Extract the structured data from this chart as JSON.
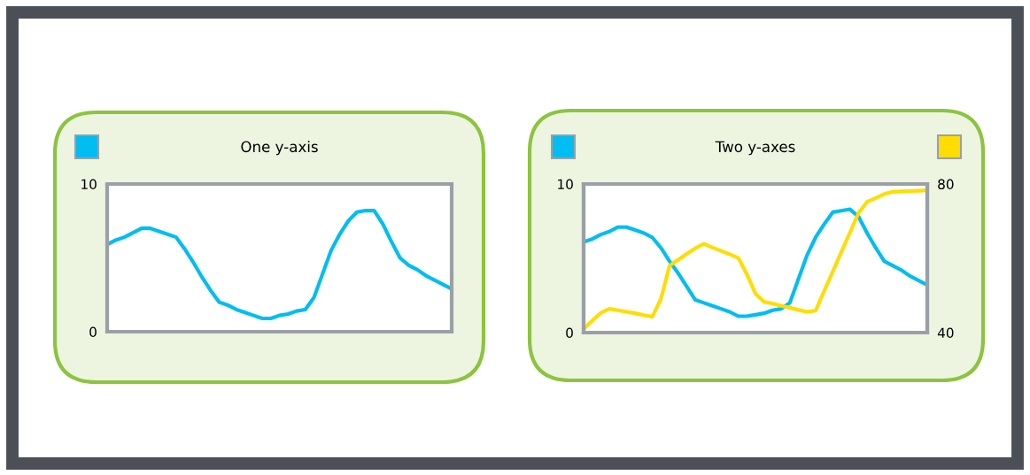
{
  "chart_data": [
    {
      "type": "line",
      "title": "One y-axis",
      "ylim": [
        0,
        10
      ],
      "yticks": [
        0,
        10
      ],
      "tick_labels": "y",
      "categories": [
        null,
        null,
        null,
        null,
        null,
        null,
        null,
        null,
        null,
        null,
        null,
        null,
        null,
        null,
        null,
        null,
        null,
        null,
        null,
        null,
        null,
        null,
        null,
        null,
        null,
        null,
        null,
        null,
        null,
        null,
        null,
        null,
        null,
        null,
        null,
        null,
        null,
        null,
        null,
        null,
        null
      ],
      "series": [
        {
          "color": "#00bdf2",
          "values": [
            5.9,
            6.2,
            6.4,
            6.7,
            7.0,
            7.0,
            6.8,
            6.6,
            6.4,
            5.6,
            4.7,
            3.7,
            2.8,
            2.0,
            1.8,
            1.5,
            1.3,
            1.1,
            0.9,
            0.9,
            1.1,
            1.2,
            1.4,
            1.5,
            2.3,
            3.9,
            5.5,
            6.6,
            7.5,
            8.1,
            8.2,
            8.2,
            7.3,
            6.1,
            5.0,
            4.5,
            4.2,
            3.8,
            3.5,
            3.2,
            2.9
          ]
        }
      ]
    },
    {
      "type": "line",
      "title": "Two y-axes",
      "ylim": [
        0,
        10
      ],
      "yticks": [
        0,
        10
      ],
      "y2lim": [
        40,
        80
      ],
      "y2ticks": [
        40,
        80
      ],
      "tick_labels": "y",
      "categories": [
        null,
        null,
        null,
        null,
        null,
        null,
        null,
        null,
        null,
        null,
        null,
        null,
        null,
        null,
        null,
        null,
        null,
        null,
        null,
        null,
        null,
        null,
        null,
        null,
        null,
        null,
        null,
        null,
        null,
        null,
        null,
        null,
        null,
        null,
        null,
        null,
        null,
        null,
        null,
        null,
        null
      ],
      "series": [
        {
          "color": "#00bdf2",
          "values": [
            6.1,
            6.3,
            6.6,
            6.8,
            7.1,
            7.1,
            6.9,
            6.7,
            6.4,
            5.7,
            4.8,
            4.0,
            3.1,
            2.2,
            2.0,
            1.8,
            1.6,
            1.4,
            1.1,
            1.1,
            1.2,
            1.3,
            1.5,
            1.6,
            2.0,
            3.6,
            5.2,
            6.4,
            7.3,
            8.1,
            8.2,
            8.3,
            7.8,
            6.7,
            5.7,
            4.8,
            4.5,
            4.2,
            3.8,
            3.5,
            3.2
          ]
        },
        {
          "color": "#ffdd00",
          "axis": "y2",
          "values": [
            41.0,
            43.2,
            45.3,
            46.4,
            46.0,
            45.6,
            45.2,
            44.7,
            44.3,
            49.1,
            58.0,
            59.6,
            61.2,
            62.7,
            63.9,
            62.9,
            62.0,
            61.1,
            60.1,
            55.7,
            50.5,
            48.3,
            47.8,
            47.2,
            46.7,
            46.1,
            45.6,
            45.9,
            51.2,
            56.4,
            61.7,
            66.9,
            72.2,
            75.2,
            76.2,
            77.3,
            77.9,
            78.0,
            78.1,
            78.2,
            78.3
          ]
        }
      ]
    }
  ]
}
